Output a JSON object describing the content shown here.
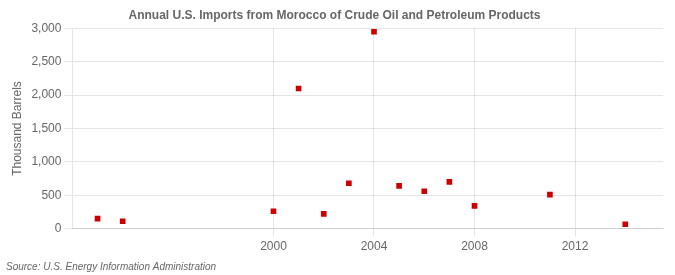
{
  "chart_data": {
    "type": "scatter",
    "title": "Annual U.S. Imports from Morocco of Crude Oil and Petroleum Products",
    "ylabel": "Thousand Barrels",
    "annotation": "Source: U.S. Energy Information Administration",
    "x": [
      1993,
      1994,
      2000,
      2001,
      2002,
      2003,
      2004,
      2005,
      2006,
      2007,
      2008,
      2011,
      2014
    ],
    "values": [
      150,
      110,
      260,
      2100,
      220,
      680,
      2950,
      640,
      560,
      700,
      340,
      510,
      65
    ],
    "color": "#cc0000",
    "marker": "square",
    "xlim": [
      1992,
      2015.5
    ],
    "xticks": [
      2000,
      2004,
      2008,
      2012
    ],
    "ylim": [
      0,
      3000
    ],
    "yticks": [
      0,
      500,
      {
        "value": 1000,
        "label": "1,000"
      },
      {
        "value": 1500,
        "label": "1,500"
      },
      {
        "value": 2000,
        "label": "2,000"
      },
      {
        "value": 2500,
        "label": "2,500"
      },
      {
        "value": 3000,
        "label": "3,000"
      }
    ],
    "grid": true
  }
}
